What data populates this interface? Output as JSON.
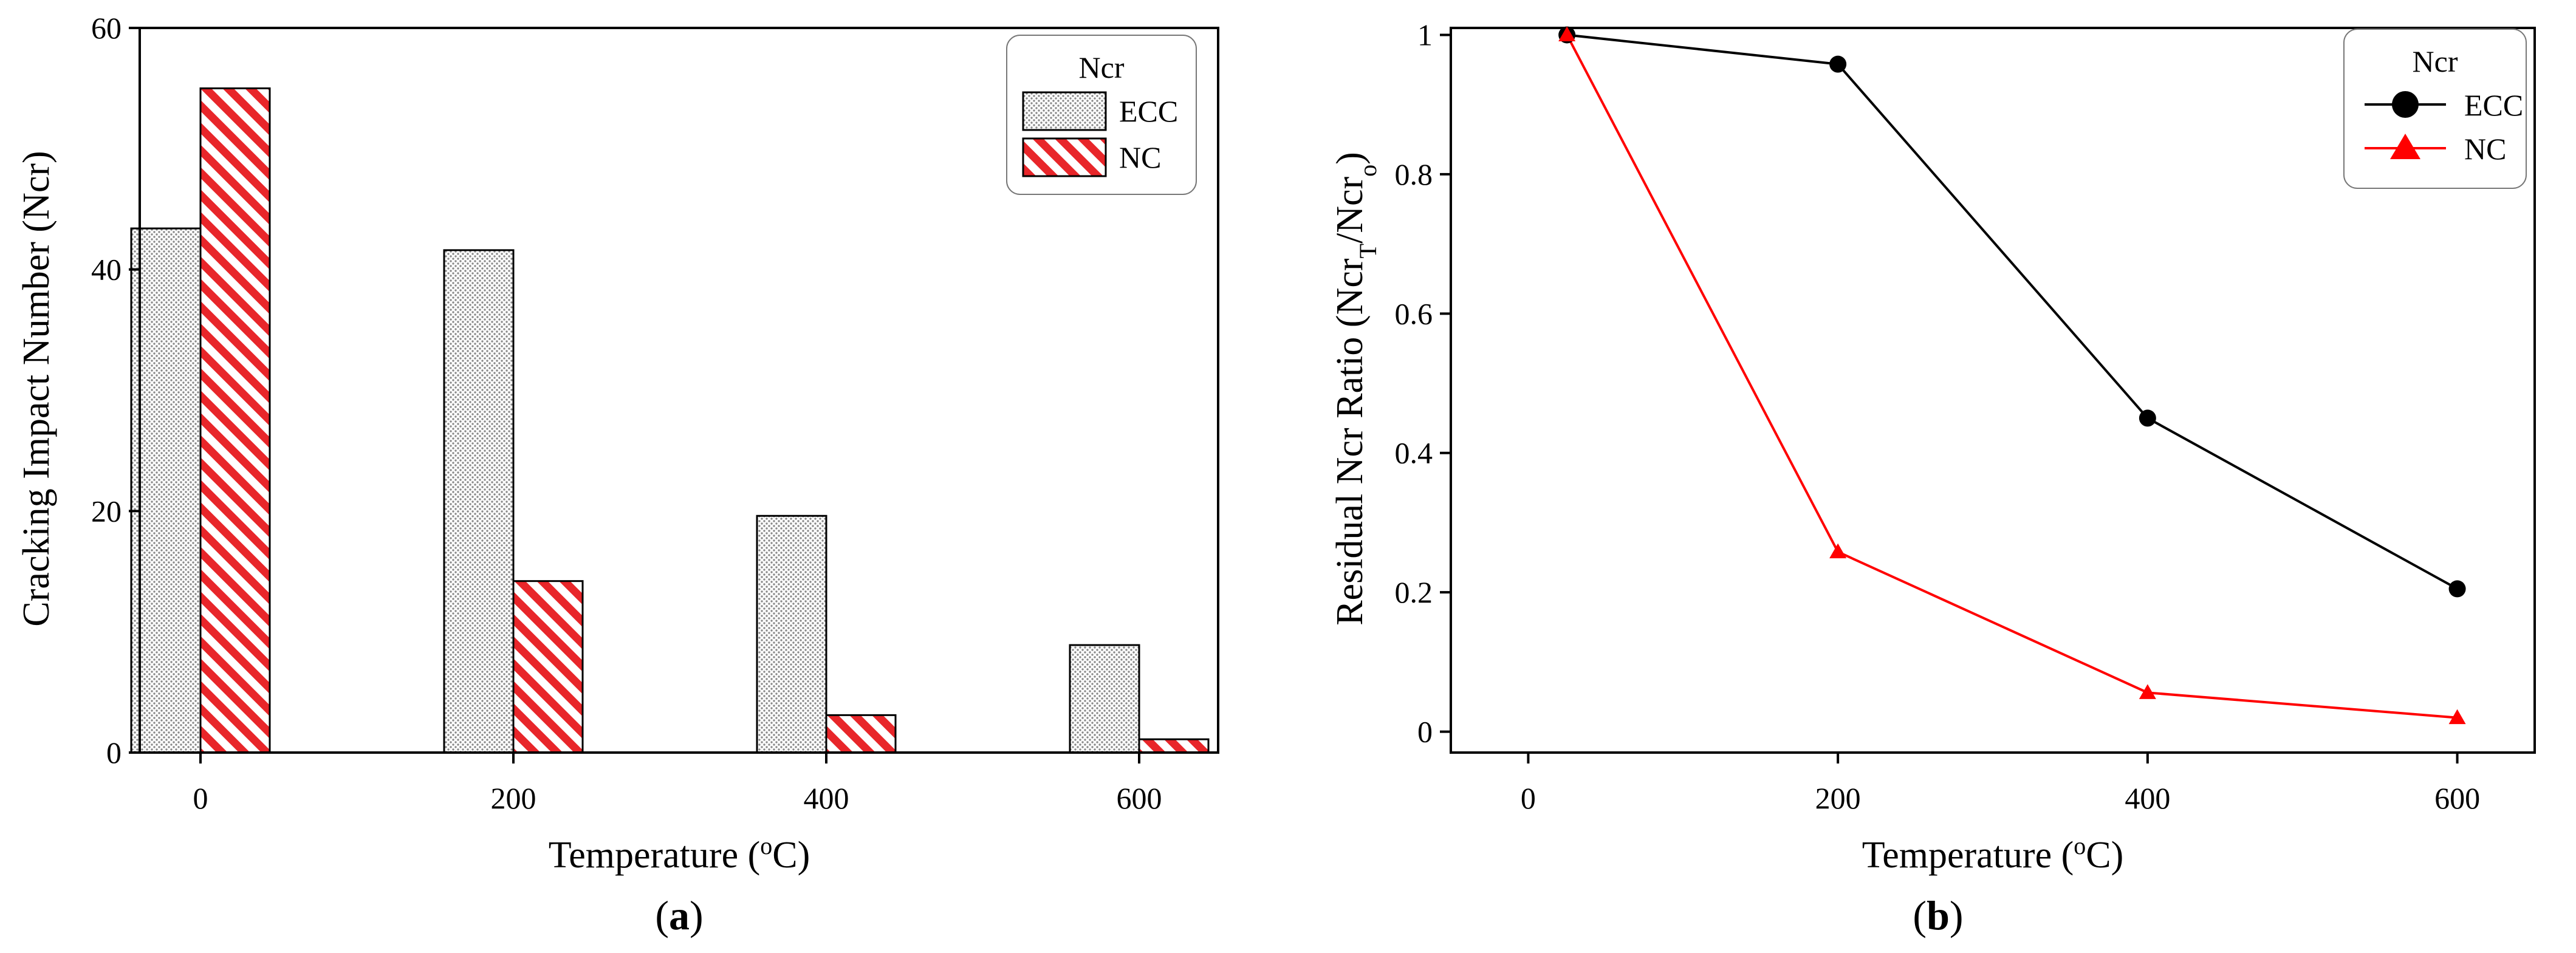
{
  "chart_data": [
    {
      "type": "bar",
      "panel_label": "a",
      "legend_title": "Ncr",
      "ylabel": "Cracking Impact Number (Ncr)",
      "xlabel_prefix": "Temperature (",
      "xlabel_sup": "o",
      "xlabel_suffix": "C)",
      "categories": [
        "0",
        "200",
        "400",
        "600"
      ],
      "ylim": [
        0,
        60
      ],
      "yticks": [
        "0",
        "20",
        "40",
        "60"
      ],
      "legend_position": "top-right",
      "series": [
        {
          "name": "ECC",
          "values": [
            43.4,
            41.6,
            19.6,
            8.9
          ],
          "fill": "dotted",
          "color": "#e3e3e3"
        },
        {
          "name": "NC",
          "values": [
            55.0,
            14.2,
            3.1,
            1.1
          ],
          "fill": "hatched",
          "color": "#e8262a"
        }
      ]
    },
    {
      "type": "line",
      "panel_label": "b",
      "legend_title": "Ncr",
      "ylabel_main": "Residual Ncr Ratio (Ncr",
      "ylabel_sub1": "T",
      "ylabel_mid": "/Ncr",
      "ylabel_sub2": "o",
      "ylabel_end": ")",
      "xlabel_prefix": "Temperature (",
      "xlabel_sup": "o",
      "xlabel_suffix": "C)",
      "xlim": [
        -50,
        650
      ],
      "ylim": [
        -0.03,
        1.01
      ],
      "xticks": [
        "0",
        "200",
        "400",
        "600"
      ],
      "yticks": [
        "0",
        "0.2",
        "0.4",
        "0.6",
        "0.8",
        "1"
      ],
      "legend_position": "top-right",
      "series": [
        {
          "name": "ECC",
          "x": [
            25,
            200,
            400,
            600
          ],
          "y": [
            1.0,
            0.958,
            0.45,
            0.205
          ],
          "marker": "circle",
          "color": "#000000"
        },
        {
          "name": "NC",
          "x": [
            25,
            200,
            400,
            600
          ],
          "y": [
            1.0,
            0.258,
            0.056,
            0.02
          ],
          "marker": "triangle",
          "color": "#ff0000"
        }
      ]
    }
  ]
}
